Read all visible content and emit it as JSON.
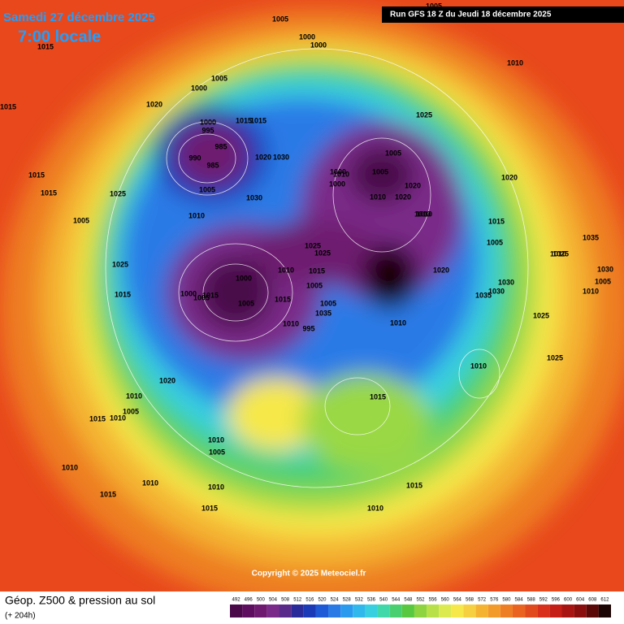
{
  "header": {
    "date": "Samedi 27 décembre 2025",
    "time": "7:00 locale",
    "run": "Run GFS 18 Z du Jeudi 18 décembre 2025"
  },
  "map": {
    "isobar_labels": [
      "1005",
      "1000",
      "1000",
      "1015",
      "1010",
      "1015",
      "1005",
      "1000",
      "1020",
      "1000",
      "995",
      "985",
      "990",
      "985",
      "1015",
      "1015",
      "1020",
      "1030",
      "1005",
      "1030",
      "1025",
      "1005",
      "1005",
      "1000",
      "1010",
      "1020",
      "1020",
      "1010",
      "1020",
      "1015",
      "1015",
      "1025",
      "1000",
      "1010",
      "1005",
      "1010",
      "1000",
      "1015",
      "1005",
      "1025",
      "1025",
      "1010",
      "1015",
      "1005",
      "1000",
      "1005",
      "1020",
      "1030",
      "1035",
      "1025",
      "1010",
      "1005",
      "1035",
      "995",
      "1010",
      "1015",
      "1005",
      "1010",
      "1025",
      "1015",
      "1005",
      "1030",
      "1025",
      "1035",
      "1030",
      "1005",
      "1010",
      "1010",
      "1015",
      "1010",
      "1025",
      "1015",
      "1020",
      "1010",
      "1005",
      "1015",
      "1010",
      "1010",
      "1005",
      "1010",
      "1015",
      "1015",
      "1010",
      "1010",
      "1015",
      "1010"
    ],
    "copyright": "Copyright © 2025 Meteociel.fr"
  },
  "footer": {
    "title": "Géop. Z500 & pression au sol",
    "lead": "(+ 204h)"
  },
  "legend": {
    "values": [
      492,
      496,
      500,
      504,
      508,
      512,
      516,
      520,
      524,
      528,
      532,
      536,
      540,
      544,
      548,
      552,
      556,
      560,
      564,
      568,
      572,
      576,
      580,
      584,
      588,
      592,
      596,
      600,
      604,
      608,
      612
    ],
    "colors": [
      "#4a0a4a",
      "#5e0e5e",
      "#6e1a70",
      "#7a2a88",
      "#5a2a8a",
      "#2a2a9a",
      "#1a3ab8",
      "#1e5ad6",
      "#2a7ae6",
      "#2a9aee",
      "#30b8ec",
      "#38d0e0",
      "#40d8a8",
      "#48d070",
      "#58c840",
      "#8ed440",
      "#b8e048",
      "#dcea50",
      "#f6e84a",
      "#f6d040",
      "#f4b432",
      "#f29a2a",
      "#ee7e24",
      "#ea6420",
      "#e04a1c",
      "#d8301a",
      "#c41e16",
      "#a81412",
      "#8a0e0e",
      "#5a0808",
      "#1a0404"
    ]
  }
}
